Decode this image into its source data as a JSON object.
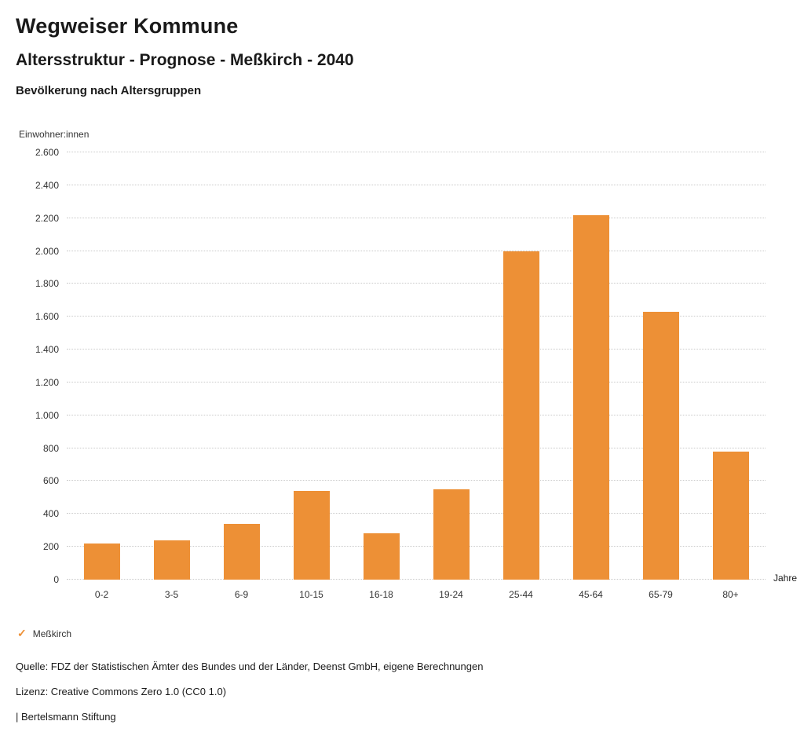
{
  "header": {
    "title": "Wegweiser Kommune",
    "subtitle": "Altersstruktur - Prognose - Meßkirch - 2040",
    "section": "Bevölkerung nach Altersgruppen"
  },
  "chart_data": {
    "type": "bar",
    "title": "Bevölkerung nach Altersgruppen",
    "ylabel": "Einwohner:innen",
    "xlabel": "Jahre",
    "categories": [
      "0-2",
      "3-5",
      "6-9",
      "10-15",
      "16-18",
      "19-24",
      "25-44",
      "45-64",
      "65-79",
      "80+"
    ],
    "values": [
      220,
      240,
      340,
      540,
      280,
      550,
      2000,
      2220,
      1630,
      780
    ],
    "ylim": [
      0,
      2600
    ],
    "ytick_step": 200,
    "yticks": [
      "0",
      "200",
      "400",
      "600",
      "800",
      "1.000",
      "1.200",
      "1.400",
      "1.600",
      "1.800",
      "2.000",
      "2.200",
      "2.400",
      "2.600"
    ],
    "grid": true,
    "legend_position": "bottom",
    "bar_color": "#ED9036"
  },
  "legend": {
    "marker_glyph": "✓",
    "marker_color": "#ED9036",
    "label": "Meßkirch"
  },
  "footer": {
    "source": "Quelle: FDZ der Statistischen Ämter des Bundes und der Länder, Deenst GmbH, eigene Berechnungen",
    "license": "Lizenz: Creative Commons Zero 1.0 (CC0 1.0)",
    "brand": "| Bertelsmann Stiftung"
  }
}
